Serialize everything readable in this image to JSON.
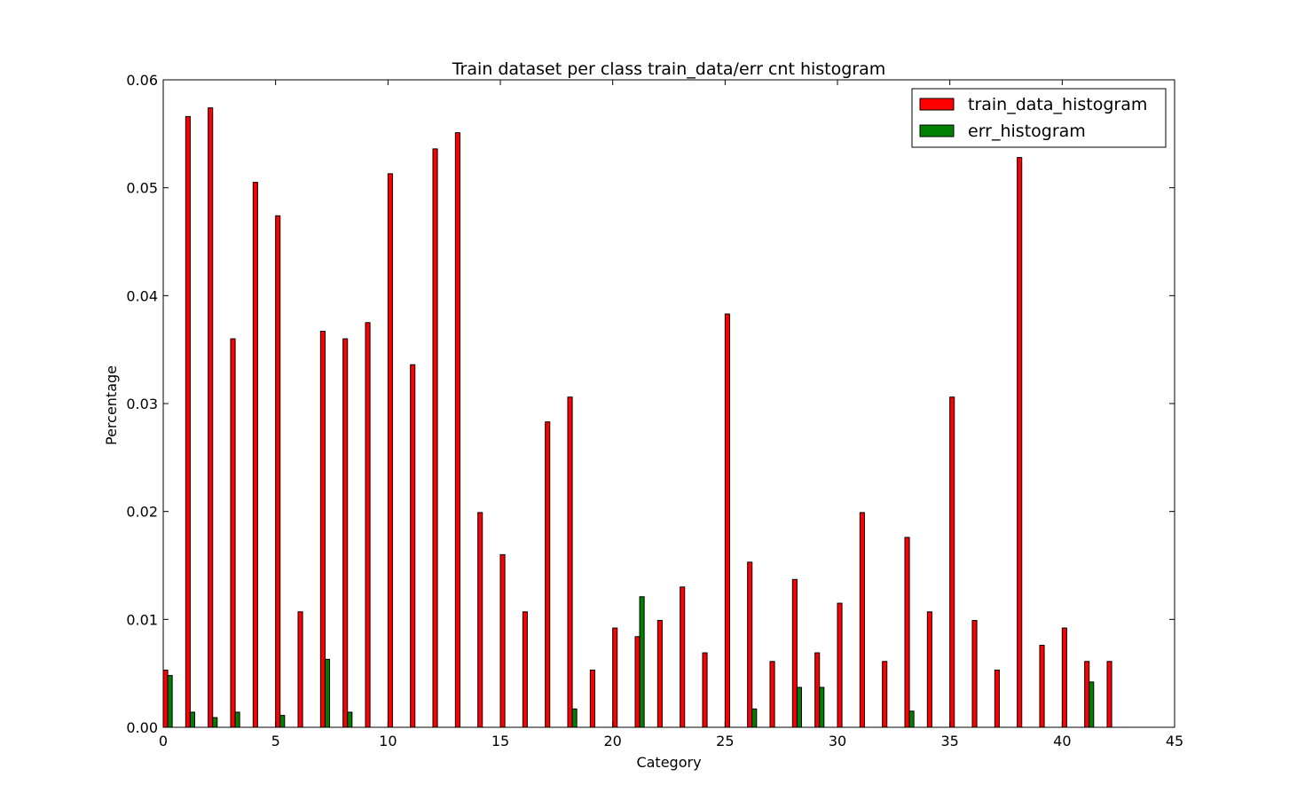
{
  "chart_data": {
    "type": "bar",
    "title": "Train dataset per class train_data/err cnt histogram",
    "xlabel": "Category",
    "ylabel": "Percentage",
    "xlim": [
      0,
      45
    ],
    "ylim": [
      0,
      0.06
    ],
    "xticks": [
      0,
      5,
      10,
      15,
      20,
      25,
      30,
      35,
      40,
      45
    ],
    "xtick_labels": [
      "0",
      "5",
      "10",
      "15",
      "20",
      "25",
      "30",
      "35",
      "40",
      "45"
    ],
    "yticks": [
      0,
      0.01,
      0.02,
      0.03,
      0.04,
      0.05,
      0.06
    ],
    "ytick_labels": [
      "0.00",
      "0.01",
      "0.02",
      "0.03",
      "0.04",
      "0.05",
      "0.06"
    ],
    "grid": false,
    "legend_position": "top-right",
    "categories": [
      0,
      1,
      2,
      3,
      4,
      5,
      6,
      7,
      8,
      9,
      10,
      11,
      12,
      13,
      14,
      15,
      16,
      17,
      18,
      19,
      20,
      21,
      22,
      23,
      24,
      25,
      26,
      27,
      28,
      29,
      30,
      31,
      32,
      33,
      34,
      35,
      36,
      37,
      38,
      39,
      40,
      41,
      42
    ],
    "series": [
      {
        "name": "train_data_histogram",
        "color": "#ff0000",
        "values": [
          0.0053,
          0.0566,
          0.0574,
          0.036,
          0.0505,
          0.0474,
          0.0107,
          0.0367,
          0.036,
          0.0375,
          0.0513,
          0.0336,
          0.0536,
          0.0551,
          0.0199,
          0.016,
          0.0107,
          0.0283,
          0.0306,
          0.0053,
          0.0092,
          0.0084,
          0.0099,
          0.013,
          0.0069,
          0.0383,
          0.0153,
          0.0061,
          0.0137,
          0.0069,
          0.0115,
          0.0199,
          0.0061,
          0.0176,
          0.0107,
          0.0306,
          0.0099,
          0.0053,
          0.0528,
          0.0076,
          0.0092,
          0.0061,
          0.0061
        ]
      },
      {
        "name": "err_histogram",
        "color": "#008000",
        "values": [
          0.0048,
          0.0014,
          0.0009,
          0.0014,
          0,
          0.0011,
          0,
          0.0063,
          0.0014,
          0,
          0,
          0,
          0,
          0,
          0,
          0,
          0,
          0,
          0.0017,
          0,
          0,
          0.0121,
          0,
          0,
          0,
          0,
          0.0017,
          0,
          0.0037,
          0.0037,
          0,
          0,
          0,
          0.0015,
          0,
          0,
          0,
          0,
          0,
          0,
          0,
          0.0042,
          0
        ]
      }
    ]
  }
}
